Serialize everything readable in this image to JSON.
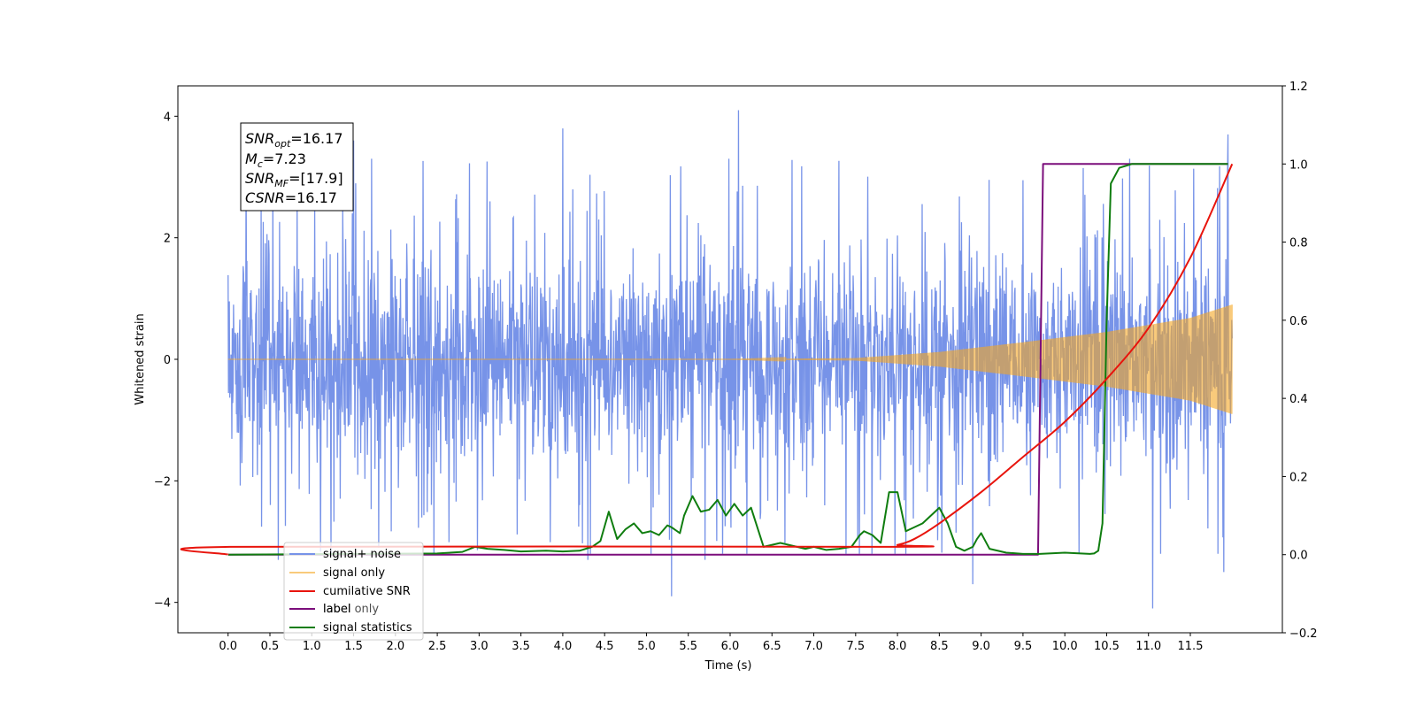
{
  "chart_data": {
    "type": "line",
    "xlabel": "Time (s)",
    "ylabel": "Whitened strain",
    "xlim": [
      -0.6,
      12.6
    ],
    "ylim": [
      -4.5,
      4.5
    ],
    "y2lim": [
      -0.2,
      1.2
    ],
    "x_ticks": [
      "0.0",
      "0.5",
      "1.0",
      "1.5",
      "2.0",
      "2.5",
      "3.0",
      "3.5",
      "4.0",
      "4.5",
      "5.0",
      "5.5",
      "6.0",
      "6.5",
      "7.0",
      "7.5",
      "8.0",
      "8.5",
      "9.0",
      "9.5",
      "10.0",
      "10.5",
      "11.0",
      "11.5"
    ],
    "y_ticks": [
      "4",
      "2",
      "0",
      "−2",
      "−4"
    ],
    "y2_ticks": [
      "1.2",
      "1.0",
      "0.8",
      "0.6",
      "0.4",
      "0.2",
      "0.0",
      "−0.2"
    ],
    "grid": false,
    "legend_position": "lower-left",
    "annotation": {
      "snr_opt": {
        "name": "SNR",
        "sub": "opt",
        "value": "=16.17"
      },
      "mc": {
        "name": "M",
        "sub": "c",
        "value": "=7.23"
      },
      "snr_mf": {
        "name": "SNR",
        "sub": "MF",
        "value": "=[17.9]"
      },
      "csnr": {
        "name": "CSNR",
        "sub": "",
        "value": "=16.17"
      }
    },
    "series": [
      {
        "name": "signal+ noise",
        "axis": "left",
        "color": "#7793e8",
        "style": "dense noisy whitened-strain trace, roughly ±2 with spikes up to about ±4",
        "x_range": [
          0.0,
          12.0
        ],
        "noise_envelope": [
          [
            0.0,
            2.0
          ],
          [
            12.0,
            2.0
          ]
        ],
        "peaks": [
          {
            "x": 0.6,
            "y": -3.3
          },
          {
            "x": 1.5,
            "y": 3.6
          },
          {
            "x": 1.8,
            "y": -3.1
          },
          {
            "x": 4.0,
            "y": 3.8
          },
          {
            "x": 4.3,
            "y": -3.3
          },
          {
            "x": 5.3,
            "y": -3.9
          },
          {
            "x": 5.7,
            "y": -3.3
          },
          {
            "x": 6.1,
            "y": 4.1
          },
          {
            "x": 8.9,
            "y": -3.7
          },
          {
            "x": 11.05,
            "y": -4.1
          },
          {
            "x": 11.9,
            "y": -3.5
          },
          {
            "x": 11.95,
            "y": 3.7
          }
        ]
      },
      {
        "name": "signal only",
        "axis": "left",
        "color": "#f5a623",
        "style": "chirp oscillating between +envelope and −envelope",
        "envelope": [
          [
            0.0,
            0.0
          ],
          [
            6.0,
            0.0
          ],
          [
            7.5,
            0.02
          ],
          [
            8.5,
            0.12
          ],
          [
            9.5,
            0.28
          ],
          [
            10.5,
            0.45
          ],
          [
            11.5,
            0.68
          ],
          [
            12.0,
            0.9
          ]
        ]
      },
      {
        "name": "cumilative SNR",
        "axis": "right",
        "color": "#e8140c",
        "x": [
          0.0,
          0.02,
          7.8,
          8.0,
          8.2,
          8.5,
          9.0,
          9.5,
          10.0,
          10.5,
          11.0,
          11.5,
          12.0
        ],
        "values": [
          0.0,
          0.02,
          0.02,
          0.025,
          0.04,
          0.08,
          0.16,
          0.25,
          0.34,
          0.45,
          0.58,
          0.76,
          1.0
        ]
      },
      {
        "name": "label",
        "axis": "right",
        "color": "#7b0e7b",
        "x": [
          0.0,
          9.68,
          9.74,
          11.95
        ],
        "values": [
          0.0,
          0.0,
          1.0,
          1.0
        ]
      },
      {
        "name": "label only",
        "axis": "right",
        "color": "#1f5fa8",
        "hidden_line": true,
        "x": [],
        "values": []
      },
      {
        "name": "signal statistics",
        "axis": "right",
        "color": "#0f7d0f",
        "x": [
          0.0,
          2.5,
          2.8,
          2.95,
          3.1,
          3.3,
          3.5,
          3.8,
          4.0,
          4.2,
          4.35,
          4.45,
          4.55,
          4.65,
          4.75,
          4.85,
          4.95,
          5.05,
          5.15,
          5.25,
          5.3,
          5.4,
          5.45,
          5.55,
          5.65,
          5.75,
          5.85,
          5.95,
          6.05,
          6.15,
          6.25,
          6.4,
          6.6,
          6.9,
          7.0,
          7.15,
          7.3,
          7.45,
          7.55,
          7.6,
          7.7,
          7.8,
          7.9,
          8.0,
          8.1,
          8.3,
          8.5,
          8.6,
          8.7,
          8.8,
          8.9,
          8.95,
          9.0,
          9.1,
          9.3,
          9.5,
          9.7,
          10.0,
          10.3,
          10.35,
          10.4,
          10.45,
          10.5,
          10.55,
          10.65,
          10.8,
          11.95
        ],
        "values": [
          0.0,
          0.003,
          0.007,
          0.02,
          0.015,
          0.012,
          0.008,
          0.01,
          0.008,
          0.01,
          0.02,
          0.035,
          0.11,
          0.04,
          0.065,
          0.08,
          0.055,
          0.06,
          0.05,
          0.075,
          0.07,
          0.055,
          0.1,
          0.15,
          0.11,
          0.115,
          0.14,
          0.1,
          0.13,
          0.1,
          0.12,
          0.02,
          0.03,
          0.015,
          0.02,
          0.012,
          0.015,
          0.02,
          0.05,
          0.06,
          0.05,
          0.03,
          0.16,
          0.16,
          0.06,
          0.08,
          0.12,
          0.08,
          0.02,
          0.01,
          0.02,
          0.04,
          0.055,
          0.015,
          0.005,
          0.002,
          0.002,
          0.005,
          0.002,
          0.003,
          0.01,
          0.08,
          0.6,
          0.95,
          0.99,
          1.0,
          1.0
        ]
      }
    ]
  }
}
